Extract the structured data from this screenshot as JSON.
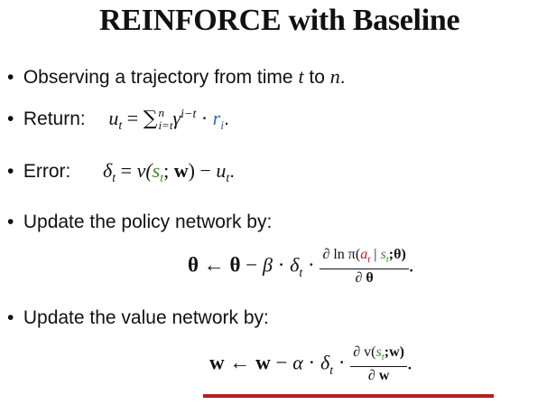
{
  "slide": {
    "title": "REINFORCE with Baseline",
    "bullets": [
      {
        "dot": "•",
        "text": "Observing a trajectory from time ",
        "t": "t",
        "to": " to ",
        "n": "n",
        "end": "."
      },
      {
        "dot": "•",
        "label": "Return:",
        "u": "u",
        "u_sub": "t",
        "eq": " = ",
        "sum": "∑",
        "sum_sup": "n",
        "sum_sub": "i=t",
        "gamma": "γ",
        "gamma_sup": "i−t",
        "dot_op": " · ",
        "r": "r",
        "r_sub": "i",
        "end": "."
      },
      {
        "dot": "•",
        "label": "Error:",
        "delta": "δ",
        "delta_sub": "t",
        "eq": " = ",
        "v": "v(",
        "s": "s",
        "s_sub": "t",
        "semi": "; ",
        "w": "w",
        "close": ") − ",
        "u": "u",
        "u_sub": "t",
        "end": "."
      },
      {
        "dot": "•",
        "text": "Update the policy network by:"
      },
      {
        "dot": "•",
        "text": "Update the value network by:"
      }
    ],
    "policy_update": {
      "theta_left": "θ",
      "arrow": " ← ",
      "theta_mid": "θ",
      "minus": " − ",
      "beta": "β",
      "dot_op": " · ",
      "delta": "δ",
      "delta_sub": "t",
      "dot_op2": " · ",
      "num_pre": "∂ ln π(",
      "num_a": "a",
      "num_a_sub": "t",
      "num_bar": " | ",
      "num_s": "s",
      "num_s_sub": "t",
      "num_theta": ";θ)",
      "den": "∂ θ",
      "end": "."
    },
    "value_update": {
      "w_left": "w",
      "arrow": " ← ",
      "w_mid": "w",
      "minus": " − ",
      "alpha": "α",
      "dot_op": " · ",
      "delta": "δ",
      "delta_sub": "t",
      "dot_op2": " · ",
      "num_pre": "∂ v(",
      "num_s": "s",
      "num_s_sub": "t",
      "num_w": ";w)",
      "den": "∂ w",
      "end": "."
    }
  },
  "colors": {
    "text": "#111111",
    "reward_blue": "#2f6db5",
    "state_green": "#3f8f2a",
    "action_red": "#b41f1f",
    "underline_red": "#b41f1f"
  }
}
